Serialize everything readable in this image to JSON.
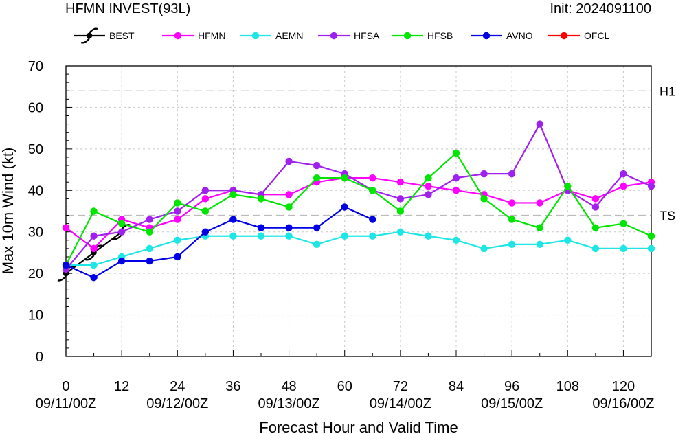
{
  "chart_data": {
    "type": "line",
    "title": "HFMN INVEST(93L)",
    "subtitle": "Init: 2024091100",
    "xlabel": "Forecast Hour and Valid Time",
    "ylabel": "Max 10m Wind (kt)",
    "xlim": [
      0,
      126
    ],
    "ylim": [
      0,
      70
    ],
    "x_ticks": [
      0,
      12,
      24,
      36,
      48,
      60,
      72,
      84,
      96,
      108,
      120
    ],
    "y_ticks": [
      0,
      10,
      20,
      30,
      40,
      50,
      60,
      70
    ],
    "valid_time_labels": [
      {
        "x": 0,
        "label": "09/11/00Z"
      },
      {
        "x": 24,
        "label": "09/12/00Z"
      },
      {
        "x": 48,
        "label": "09/13/00Z"
      },
      {
        "x": 72,
        "label": "09/14/00Z"
      },
      {
        "x": 96,
        "label": "09/15/00Z"
      },
      {
        "x": 120,
        "label": "09/16/00Z"
      }
    ],
    "reference_lines": [
      {
        "label": "H1",
        "value": 64
      },
      {
        "label": "TS",
        "value": 34
      }
    ],
    "grid": true,
    "legend_position": "top",
    "series": [
      {
        "name": "BEST",
        "color": "#000000",
        "marker": "hurricane-symbol",
        "x": [
          0,
          6,
          12
        ],
        "values": [
          20,
          25,
          30
        ]
      },
      {
        "name": "HFMN",
        "color": "#ff00ff",
        "marker": "circle",
        "x": [
          0,
          6,
          12,
          18,
          24,
          30,
          36,
          42,
          48,
          54,
          60,
          66,
          72,
          78,
          84,
          90,
          96,
          102,
          108,
          114,
          120,
          126
        ],
        "values": [
          31,
          26,
          33,
          31,
          33,
          38,
          40,
          39,
          39,
          42,
          43,
          43,
          42,
          41,
          40,
          39,
          37,
          37,
          40,
          38,
          41,
          42
        ]
      },
      {
        "name": "AEMN",
        "color": "#1ee6e6",
        "marker": "circle",
        "x": [
          0,
          6,
          12,
          18,
          24,
          30,
          36,
          42,
          48,
          54,
          60,
          66,
          72,
          78,
          84,
          90,
          96,
          102,
          108,
          114,
          120,
          126
        ],
        "values": [
          22,
          22,
          24,
          26,
          28,
          29,
          29,
          29,
          29,
          27,
          29,
          29,
          30,
          29,
          28,
          26,
          27,
          27,
          28,
          26,
          26,
          26
        ]
      },
      {
        "name": "HFSA",
        "color": "#a020f0",
        "marker": "circle",
        "x": [
          0,
          6,
          12,
          18,
          24,
          30,
          36,
          42,
          48,
          54,
          60,
          66,
          72,
          78,
          84,
          90,
          96,
          102,
          108,
          114,
          120,
          126
        ],
        "values": [
          21,
          29,
          30,
          33,
          35,
          40,
          40,
          39,
          47,
          46,
          44,
          40,
          38,
          39,
          43,
          44,
          44,
          56,
          40,
          36,
          44,
          41
        ]
      },
      {
        "name": "HFSB",
        "color": "#00e600",
        "marker": "circle",
        "x": [
          0,
          6,
          12,
          18,
          24,
          30,
          36,
          42,
          48,
          54,
          60,
          66,
          72,
          78,
          84,
          90,
          96,
          102,
          108,
          114,
          120,
          126
        ],
        "values": [
          22,
          35,
          32,
          30,
          37,
          35,
          39,
          38,
          36,
          43,
          43,
          40,
          35,
          43,
          49,
          38,
          33,
          31,
          41,
          31,
          32,
          29
        ]
      },
      {
        "name": "AVNO",
        "color": "#0000e6",
        "marker": "circle",
        "x": [
          0,
          6,
          12,
          18,
          24,
          30,
          36,
          42,
          48,
          54,
          60,
          66
        ],
        "values": [
          22,
          19,
          23,
          23,
          24,
          30,
          33,
          31,
          31,
          31,
          36,
          33
        ]
      },
      {
        "name": "OFCL",
        "color": "#ff0000",
        "marker": "circle",
        "x": [],
        "values": []
      }
    ]
  }
}
